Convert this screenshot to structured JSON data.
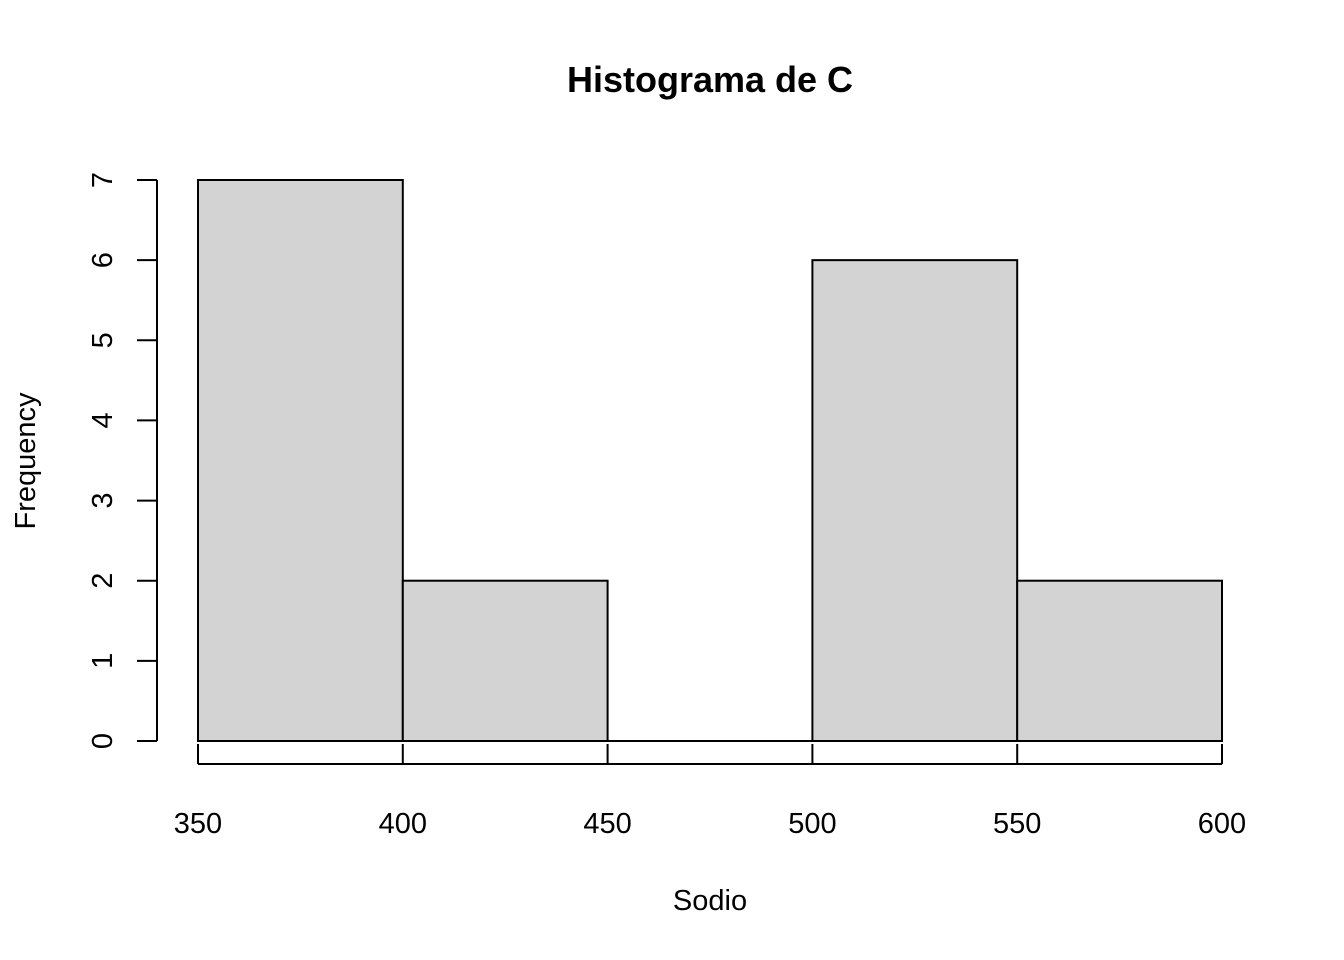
{
  "chart_data": {
    "type": "bar",
    "title": "Histograma de C",
    "xlabel": "Sodio",
    "ylabel": "Frequency",
    "bins": [
      {
        "start": 350,
        "end": 400,
        "count": 7
      },
      {
        "start": 400,
        "end": 450,
        "count": 2
      },
      {
        "start": 450,
        "end": 500,
        "count": 0
      },
      {
        "start": 500,
        "end": 550,
        "count": 6
      },
      {
        "start": 550,
        "end": 600,
        "count": 2
      }
    ],
    "xticks": [
      350,
      400,
      450,
      500,
      550,
      600
    ],
    "yticks": [
      0,
      1,
      2,
      3,
      4,
      5,
      6,
      7
    ],
    "xlim": [
      350,
      600
    ],
    "ylim": [
      0,
      7
    ],
    "grid": false,
    "bar_color": "#d3d3d3",
    "edge_color": "#000000"
  }
}
